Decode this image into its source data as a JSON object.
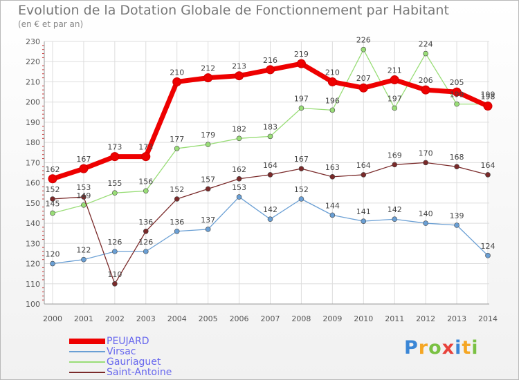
{
  "title": "Evolution de la Dotation Globale de Fonctionnement par Habitant",
  "subtitle": "(en € et par an)",
  "brand": {
    "letters": [
      "P",
      "r",
      "o",
      "x",
      "i",
      "t",
      "i"
    ],
    "colors": [
      "#3a86d6",
      "#f5a623",
      "#7ac143",
      "#e8423b",
      "#3a86d6",
      "#f5a623",
      "#7ac143"
    ]
  },
  "chart_data": {
    "type": "line",
    "title": "Evolution de la Dotation Globale de Fonctionnement par Habitant",
    "ylabel": "(en € et par an)",
    "x": [
      "2000",
      "2001",
      "2002",
      "2003",
      "2004",
      "2005",
      "2006",
      "2007",
      "2008",
      "2009",
      "2010",
      "2011",
      "2012",
      "2013",
      "2014"
    ],
    "ylim": [
      100,
      230
    ],
    "yticks": [
      "100",
      "110",
      "120",
      "130",
      "140",
      "150",
      "160",
      "170",
      "180",
      "190",
      "200",
      "210",
      "220",
      "230"
    ],
    "grid": true,
    "series": [
      {
        "name": "PEUJARD",
        "color": "#ee0000",
        "values": [
          162,
          167,
          173,
          173,
          210,
          212,
          213,
          216,
          219,
          210,
          207,
          211,
          206,
          205,
          198
        ],
        "labels": [
          "162",
          "167",
          "173",
          "173",
          "210",
          "212",
          "213",
          "216",
          "219",
          "210",
          "207",
          "211",
          "206",
          "205",
          "198"
        ]
      },
      {
        "name": "Virsac",
        "color": "#6a9fd4",
        "values": [
          120,
          122,
          126,
          126,
          136,
          137,
          153,
          142,
          152,
          144,
          141,
          142,
          140,
          139,
          124
        ],
        "labels": [
          "120",
          "122",
          "126",
          "126",
          "136",
          "137",
          "153",
          "142",
          "152",
          "144",
          "141",
          "142",
          "140",
          "139",
          "124"
        ]
      },
      {
        "name": "Gauriaguet",
        "color": "#99dd77",
        "values": [
          145,
          149,
          155,
          156,
          177,
          179,
          182,
          183,
          197,
          196,
          226,
          197,
          224,
          199,
          199
        ],
        "labels": [
          "145",
          "149",
          "155",
          "156",
          "177",
          "179",
          "182",
          "183",
          "197",
          "196",
          "226",
          "197",
          "224",
          "199",
          "199"
        ]
      },
      {
        "name": "Saint-Antoine",
        "color": "#7a2a2a",
        "values": [
          152,
          153,
          110,
          136,
          152,
          157,
          162,
          164,
          167,
          163,
          164,
          169,
          170,
          168,
          164
        ],
        "labels": [
          "152",
          "153",
          "110",
          "136",
          "152",
          "157",
          "162",
          "164",
          "167",
          "163",
          "164",
          "169",
          "170",
          "168",
          "164"
        ]
      }
    ]
  },
  "legend": {
    "items": [
      {
        "label": "PEUJARD",
        "color": "#ee0000",
        "text_color": "#6666ee"
      },
      {
        "label": "Virsac",
        "color": "#6a9fd4",
        "text_color": "#6666ee"
      },
      {
        "label": "Gauriaguet",
        "color": "#99dd77",
        "text_color": "#6666ee"
      },
      {
        "label": "Saint-Antoine",
        "color": "#7a2a2a",
        "text_color": "#6666ee"
      }
    ]
  }
}
